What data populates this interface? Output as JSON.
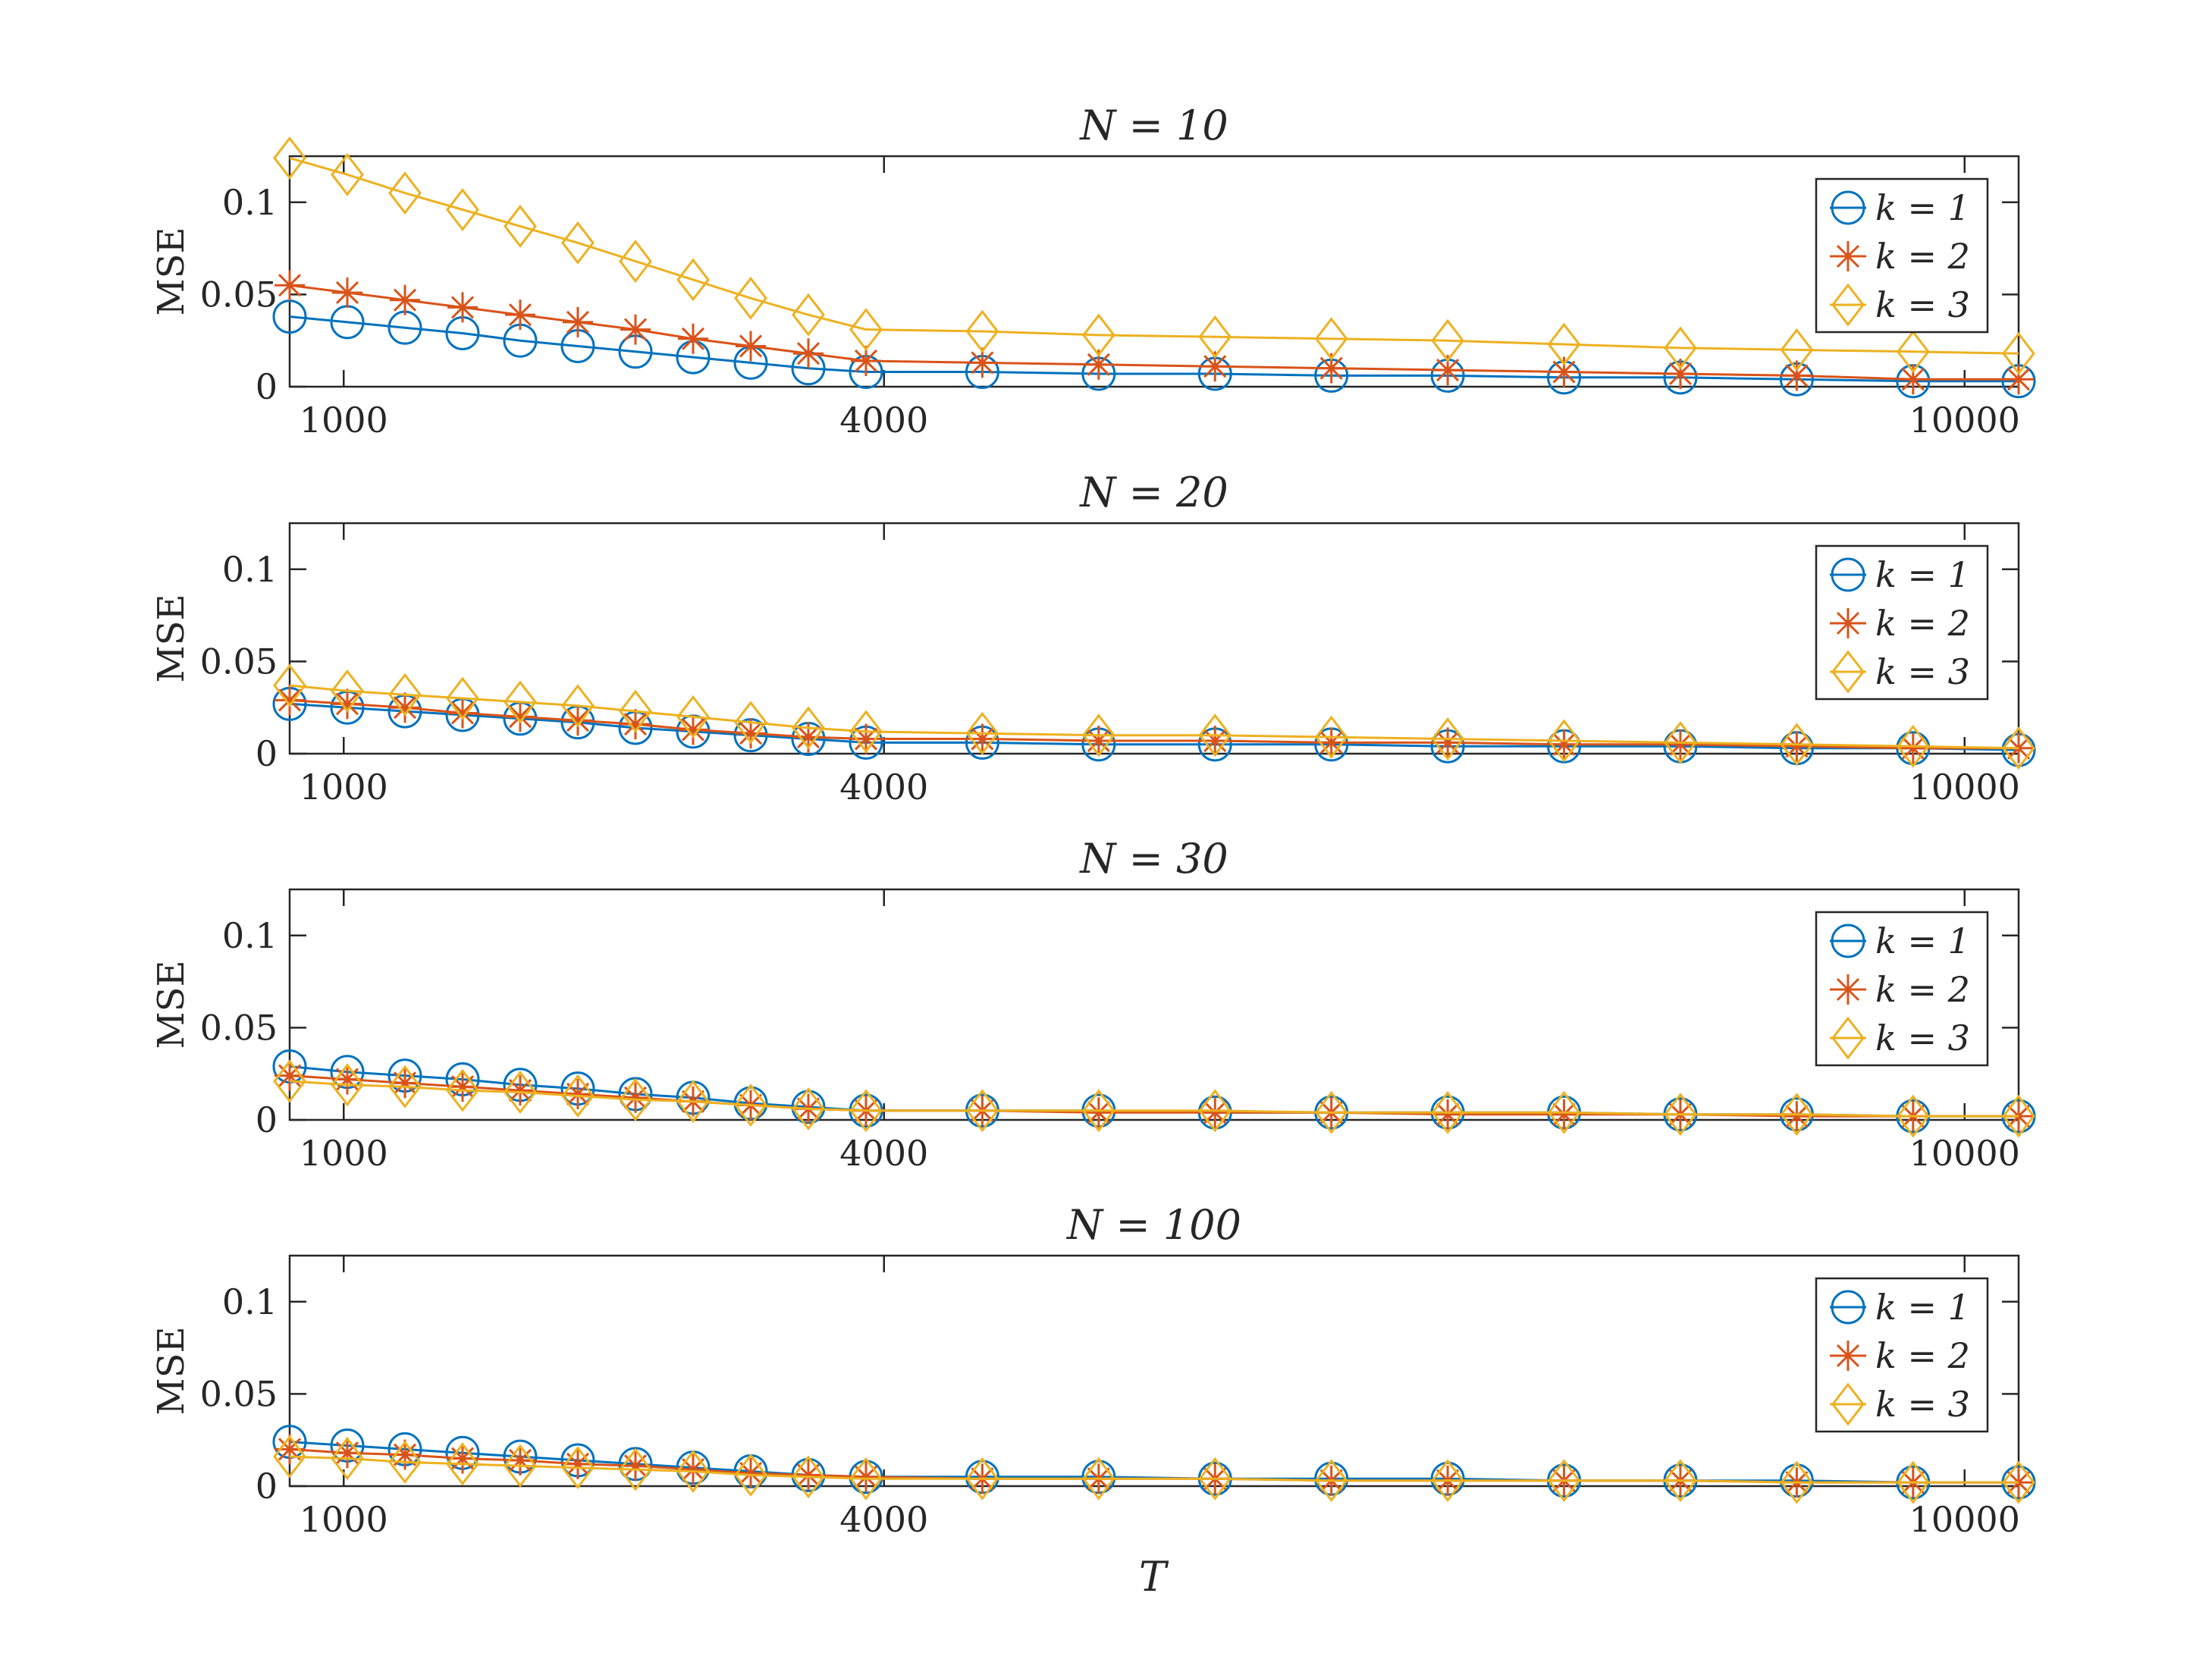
{
  "figure": {
    "xlabel": "T"
  },
  "chart_data": [
    {
      "type": "line",
      "title": "N = 10",
      "ylabel": "MSE",
      "xlabel": "",
      "xlim": [
        700,
        10300
      ],
      "ylim": [
        0,
        0.125
      ],
      "xtick_labels": [
        "1000",
        "4000",
        "10000"
      ],
      "ytick_labels": [
        "0",
        "0.05",
        "0.1"
      ],
      "x": [
        700,
        1020,
        1340,
        1660,
        1980,
        2300,
        2620,
        2940,
        3260,
        3580,
        3900,
        4546,
        5192,
        5838,
        6484,
        7130,
        7776,
        8422,
        9068,
        9714,
        10300
      ],
      "series": [
        {
          "name": "k = 1",
          "color": "#0072BD",
          "marker": "circle",
          "values": [
            0.038,
            0.035,
            0.032,
            0.029,
            0.025,
            0.022,
            0.019,
            0.016,
            0.013,
            0.01,
            0.008,
            0.008,
            0.007,
            0.007,
            0.006,
            0.006,
            0.005,
            0.005,
            0.004,
            0.003,
            0.003
          ]
        },
        {
          "name": "k = 2",
          "color": "#D95319",
          "marker": "star",
          "values": [
            0.055,
            0.051,
            0.047,
            0.043,
            0.039,
            0.035,
            0.031,
            0.026,
            0.022,
            0.018,
            0.014,
            0.013,
            0.012,
            0.011,
            0.01,
            0.009,
            0.008,
            0.007,
            0.006,
            0.004,
            0.004
          ]
        },
        {
          "name": "k = 3",
          "color": "#EDB120",
          "marker": "diamond",
          "values": [
            0.124,
            0.115,
            0.105,
            0.096,
            0.087,
            0.078,
            0.068,
            0.058,
            0.048,
            0.039,
            0.031,
            0.03,
            0.028,
            0.027,
            0.026,
            0.025,
            0.023,
            0.021,
            0.02,
            0.019,
            0.018
          ]
        }
      ],
      "legend": "right"
    },
    {
      "type": "line",
      "title": "N = 20",
      "ylabel": "MSE",
      "xlabel": "",
      "xlim": [
        700,
        10300
      ],
      "ylim": [
        0,
        0.125
      ],
      "xtick_labels": [
        "1000",
        "4000",
        "10000"
      ],
      "ytick_labels": [
        "0",
        "0.05",
        "0.1"
      ],
      "x": [
        700,
        1020,
        1340,
        1660,
        1980,
        2300,
        2620,
        2940,
        3260,
        3580,
        3900,
        4546,
        5192,
        5838,
        6484,
        7130,
        7776,
        8422,
        9068,
        9714,
        10300
      ],
      "series": [
        {
          "name": "k = 1",
          "color": "#0072BD",
          "marker": "circle",
          "values": [
            0.027,
            0.025,
            0.023,
            0.021,
            0.019,
            0.017,
            0.014,
            0.012,
            0.01,
            0.008,
            0.006,
            0.006,
            0.005,
            0.005,
            0.005,
            0.004,
            0.004,
            0.004,
            0.003,
            0.003,
            0.002
          ]
        },
        {
          "name": "k = 2",
          "color": "#D95319",
          "marker": "star",
          "values": [
            0.029,
            0.027,
            0.025,
            0.022,
            0.02,
            0.018,
            0.016,
            0.013,
            0.011,
            0.009,
            0.008,
            0.008,
            0.007,
            0.007,
            0.006,
            0.006,
            0.005,
            0.005,
            0.004,
            0.003,
            0.003
          ]
        },
        {
          "name": "k = 3",
          "color": "#EDB120",
          "marker": "diamond",
          "values": [
            0.037,
            0.034,
            0.032,
            0.03,
            0.028,
            0.026,
            0.023,
            0.02,
            0.017,
            0.014,
            0.012,
            0.011,
            0.01,
            0.01,
            0.009,
            0.008,
            0.007,
            0.006,
            0.005,
            0.004,
            0.003
          ]
        }
      ],
      "legend": "right"
    },
    {
      "type": "line",
      "title": "N = 30",
      "ylabel": "MSE",
      "xlabel": "",
      "xlim": [
        700,
        10300
      ],
      "ylim": [
        0,
        0.125
      ],
      "xtick_labels": [
        "1000",
        "4000",
        "10000"
      ],
      "ytick_labels": [
        "0",
        "0.05",
        "0.1"
      ],
      "x": [
        700,
        1020,
        1340,
        1660,
        1980,
        2300,
        2620,
        2940,
        3260,
        3580,
        3900,
        4546,
        5192,
        5838,
        6484,
        7130,
        7776,
        8422,
        9068,
        9714,
        10300
      ],
      "series": [
        {
          "name": "k = 1",
          "color": "#0072BD",
          "marker": "circle",
          "values": [
            0.029,
            0.026,
            0.024,
            0.022,
            0.019,
            0.017,
            0.014,
            0.012,
            0.009,
            0.007,
            0.005,
            0.005,
            0.005,
            0.004,
            0.004,
            0.004,
            0.004,
            0.003,
            0.003,
            0.002,
            0.002
          ]
        },
        {
          "name": "k = 2",
          "color": "#D95319",
          "marker": "star",
          "values": [
            0.024,
            0.022,
            0.02,
            0.018,
            0.016,
            0.014,
            0.012,
            0.01,
            0.008,
            0.006,
            0.005,
            0.005,
            0.004,
            0.004,
            0.004,
            0.003,
            0.003,
            0.003,
            0.002,
            0.002,
            0.002
          ]
        },
        {
          "name": "k = 3",
          "color": "#EDB120",
          "marker": "diamond",
          "values": [
            0.021,
            0.019,
            0.018,
            0.016,
            0.015,
            0.013,
            0.011,
            0.01,
            0.008,
            0.006,
            0.005,
            0.005,
            0.005,
            0.005,
            0.004,
            0.004,
            0.004,
            0.003,
            0.003,
            0.002,
            0.002
          ]
        }
      ],
      "legend": "right"
    },
    {
      "type": "line",
      "title": "N = 100",
      "ylabel": "MSE",
      "xlabel": "T",
      "xlim": [
        700,
        10300
      ],
      "ylim": [
        0,
        0.125
      ],
      "xtick_labels": [
        "1000",
        "4000",
        "10000"
      ],
      "ytick_labels": [
        "0",
        "0.05",
        "0.1"
      ],
      "x": [
        700,
        1020,
        1340,
        1660,
        1980,
        2300,
        2620,
        2940,
        3260,
        3580,
        3900,
        4546,
        5192,
        5838,
        6484,
        7130,
        7776,
        8422,
        9068,
        9714,
        10300
      ],
      "series": [
        {
          "name": "k = 1",
          "color": "#0072BD",
          "marker": "circle",
          "values": [
            0.024,
            0.022,
            0.02,
            0.018,
            0.016,
            0.014,
            0.012,
            0.01,
            0.008,
            0.006,
            0.005,
            0.005,
            0.005,
            0.004,
            0.004,
            0.004,
            0.003,
            0.003,
            0.003,
            0.002,
            0.002
          ]
        },
        {
          "name": "k = 2",
          "color": "#D95319",
          "marker": "star",
          "values": [
            0.02,
            0.018,
            0.017,
            0.015,
            0.014,
            0.012,
            0.011,
            0.009,
            0.007,
            0.006,
            0.005,
            0.004,
            0.004,
            0.004,
            0.003,
            0.003,
            0.003,
            0.003,
            0.002,
            0.002,
            0.002
          ]
        },
        {
          "name": "k = 3",
          "color": "#EDB120",
          "marker": "diamond",
          "values": [
            0.016,
            0.015,
            0.013,
            0.012,
            0.011,
            0.01,
            0.009,
            0.008,
            0.006,
            0.005,
            0.004,
            0.004,
            0.004,
            0.004,
            0.003,
            0.003,
            0.003,
            0.003,
            0.002,
            0.002,
            0.002
          ]
        }
      ],
      "legend": "right"
    }
  ]
}
